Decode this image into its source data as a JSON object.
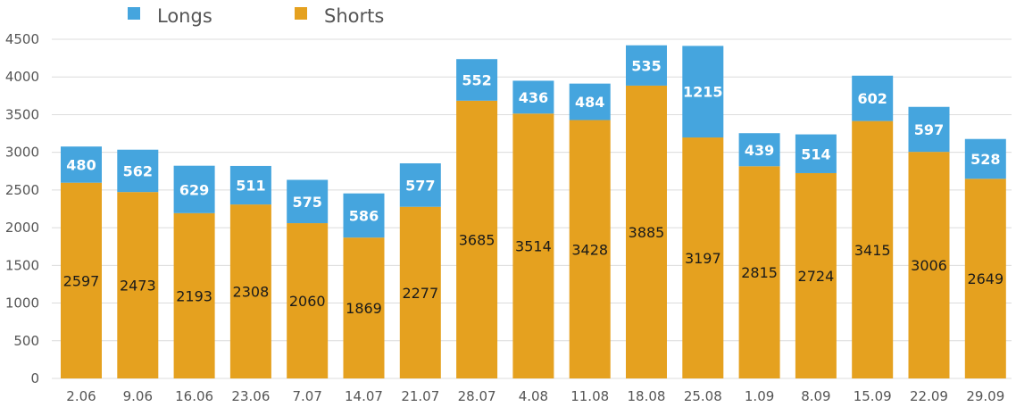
{
  "chart_data": {
    "type": "bar",
    "stacked": true,
    "categories": [
      "2.06",
      "9.06",
      "16.06",
      "23.06",
      "7.07",
      "14.07",
      "21.07",
      "28.07",
      "4.08",
      "11.08",
      "18.08",
      "25.08",
      "1.09",
      "8.09",
      "15.09",
      "22.09",
      "29.09"
    ],
    "series": [
      {
        "name": "Shorts",
        "color": "#E5A11F",
        "values": [
          2597,
          2473,
          2193,
          2308,
          2060,
          1869,
          2277,
          3685,
          3514,
          3428,
          3885,
          3197,
          2815,
          2724,
          3415,
          3006,
          2649
        ]
      },
      {
        "name": "Longs",
        "color": "#45A5DE",
        "values": [
          480,
          562,
          629,
          511,
          575,
          586,
          577,
          552,
          436,
          484,
          535,
          1215,
          439,
          514,
          602,
          597,
          528
        ]
      }
    ],
    "legend": [
      {
        "name": "Longs",
        "color": "#45A5DE"
      },
      {
        "name": "Shorts",
        "color": "#E5A11F"
      }
    ],
    "legend_position": "top",
    "ylim": [
      0,
      4500
    ],
    "yticks": [
      0,
      500,
      1000,
      1500,
      2000,
      2500,
      3000,
      3500,
      4000,
      4500
    ],
    "grid": true
  }
}
